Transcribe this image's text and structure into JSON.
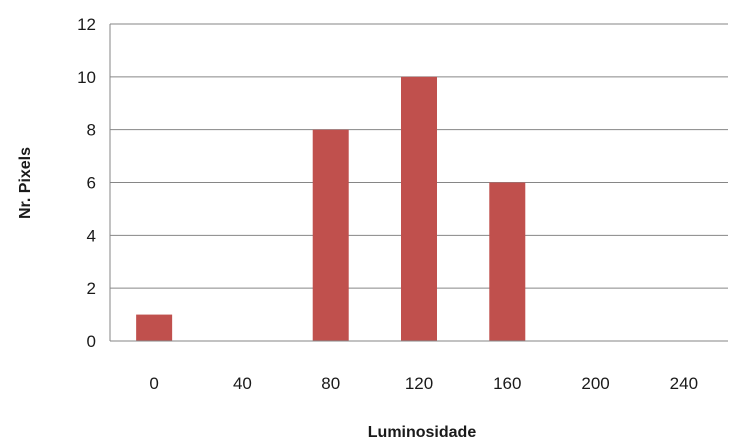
{
  "chart_data": {
    "type": "bar",
    "title": "",
    "xlabel": "Luminosidade",
    "ylabel": "Nr. Pixels",
    "categories": [
      "0",
      "40",
      "80",
      "120",
      "160",
      "200",
      "240"
    ],
    "values": [
      1,
      0,
      8,
      10,
      6,
      0,
      0
    ],
    "ylim": [
      0,
      12
    ],
    "yticks": [
      "0",
      "2",
      "4",
      "6",
      "8",
      "10",
      "12"
    ],
    "grid": "horizontal",
    "legend": "none",
    "bar_color": "#c0504d",
    "gridline_color": "#868686"
  }
}
